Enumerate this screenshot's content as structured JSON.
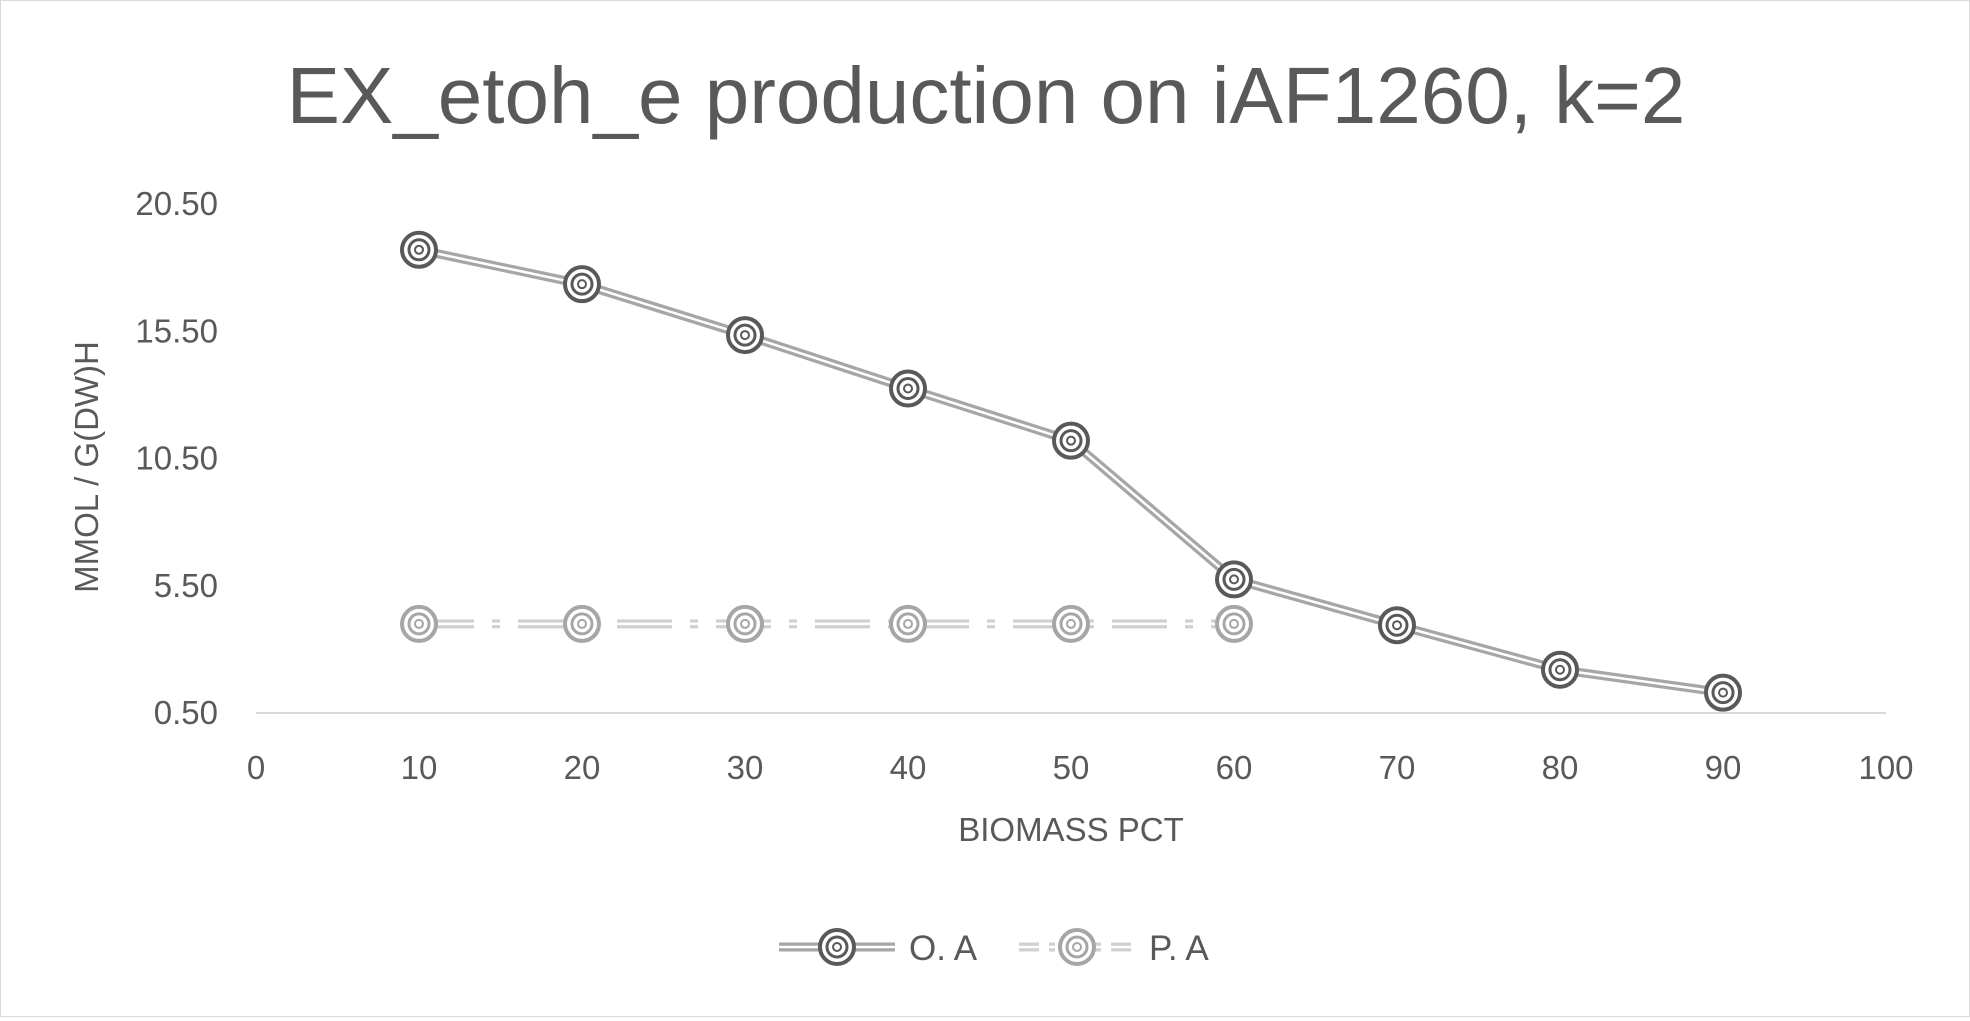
{
  "chart_data": {
    "type": "line",
    "title": "EX_etoh_e production on iAF1260, k=2",
    "xlabel": "BIOMASS PCT",
    "ylabel": "MMOL / G(DW)H",
    "xlim": [
      0,
      100
    ],
    "ylim": [
      0.5,
      20.5
    ],
    "x_ticks": [
      "0",
      "10",
      "20",
      "30",
      "40",
      "50",
      "60",
      "70",
      "80",
      "90",
      "100"
    ],
    "y_ticks": [
      "0.50",
      "5.50",
      "10.50",
      "15.50",
      "20.50"
    ],
    "x": [
      10,
      20,
      30,
      40,
      50,
      60,
      70,
      80,
      90
    ],
    "series": [
      {
        "name": "O. A",
        "values": [
          18.7,
          17.35,
          15.35,
          13.25,
          11.2,
          5.75,
          3.95,
          2.2,
          1.3
        ],
        "color": "#a6a6a6",
        "marker_color": "#595959",
        "line_style": "solid"
      },
      {
        "name": "P. A",
        "values": [
          4.0,
          4.0,
          4.0,
          4.0,
          4.0,
          4.0,
          null,
          null,
          null
        ],
        "color": "#d0d0d0",
        "marker_color": "#a6a6a6",
        "line_style": "dash-dot"
      }
    ],
    "grid": false,
    "legend_position": "bottom"
  }
}
